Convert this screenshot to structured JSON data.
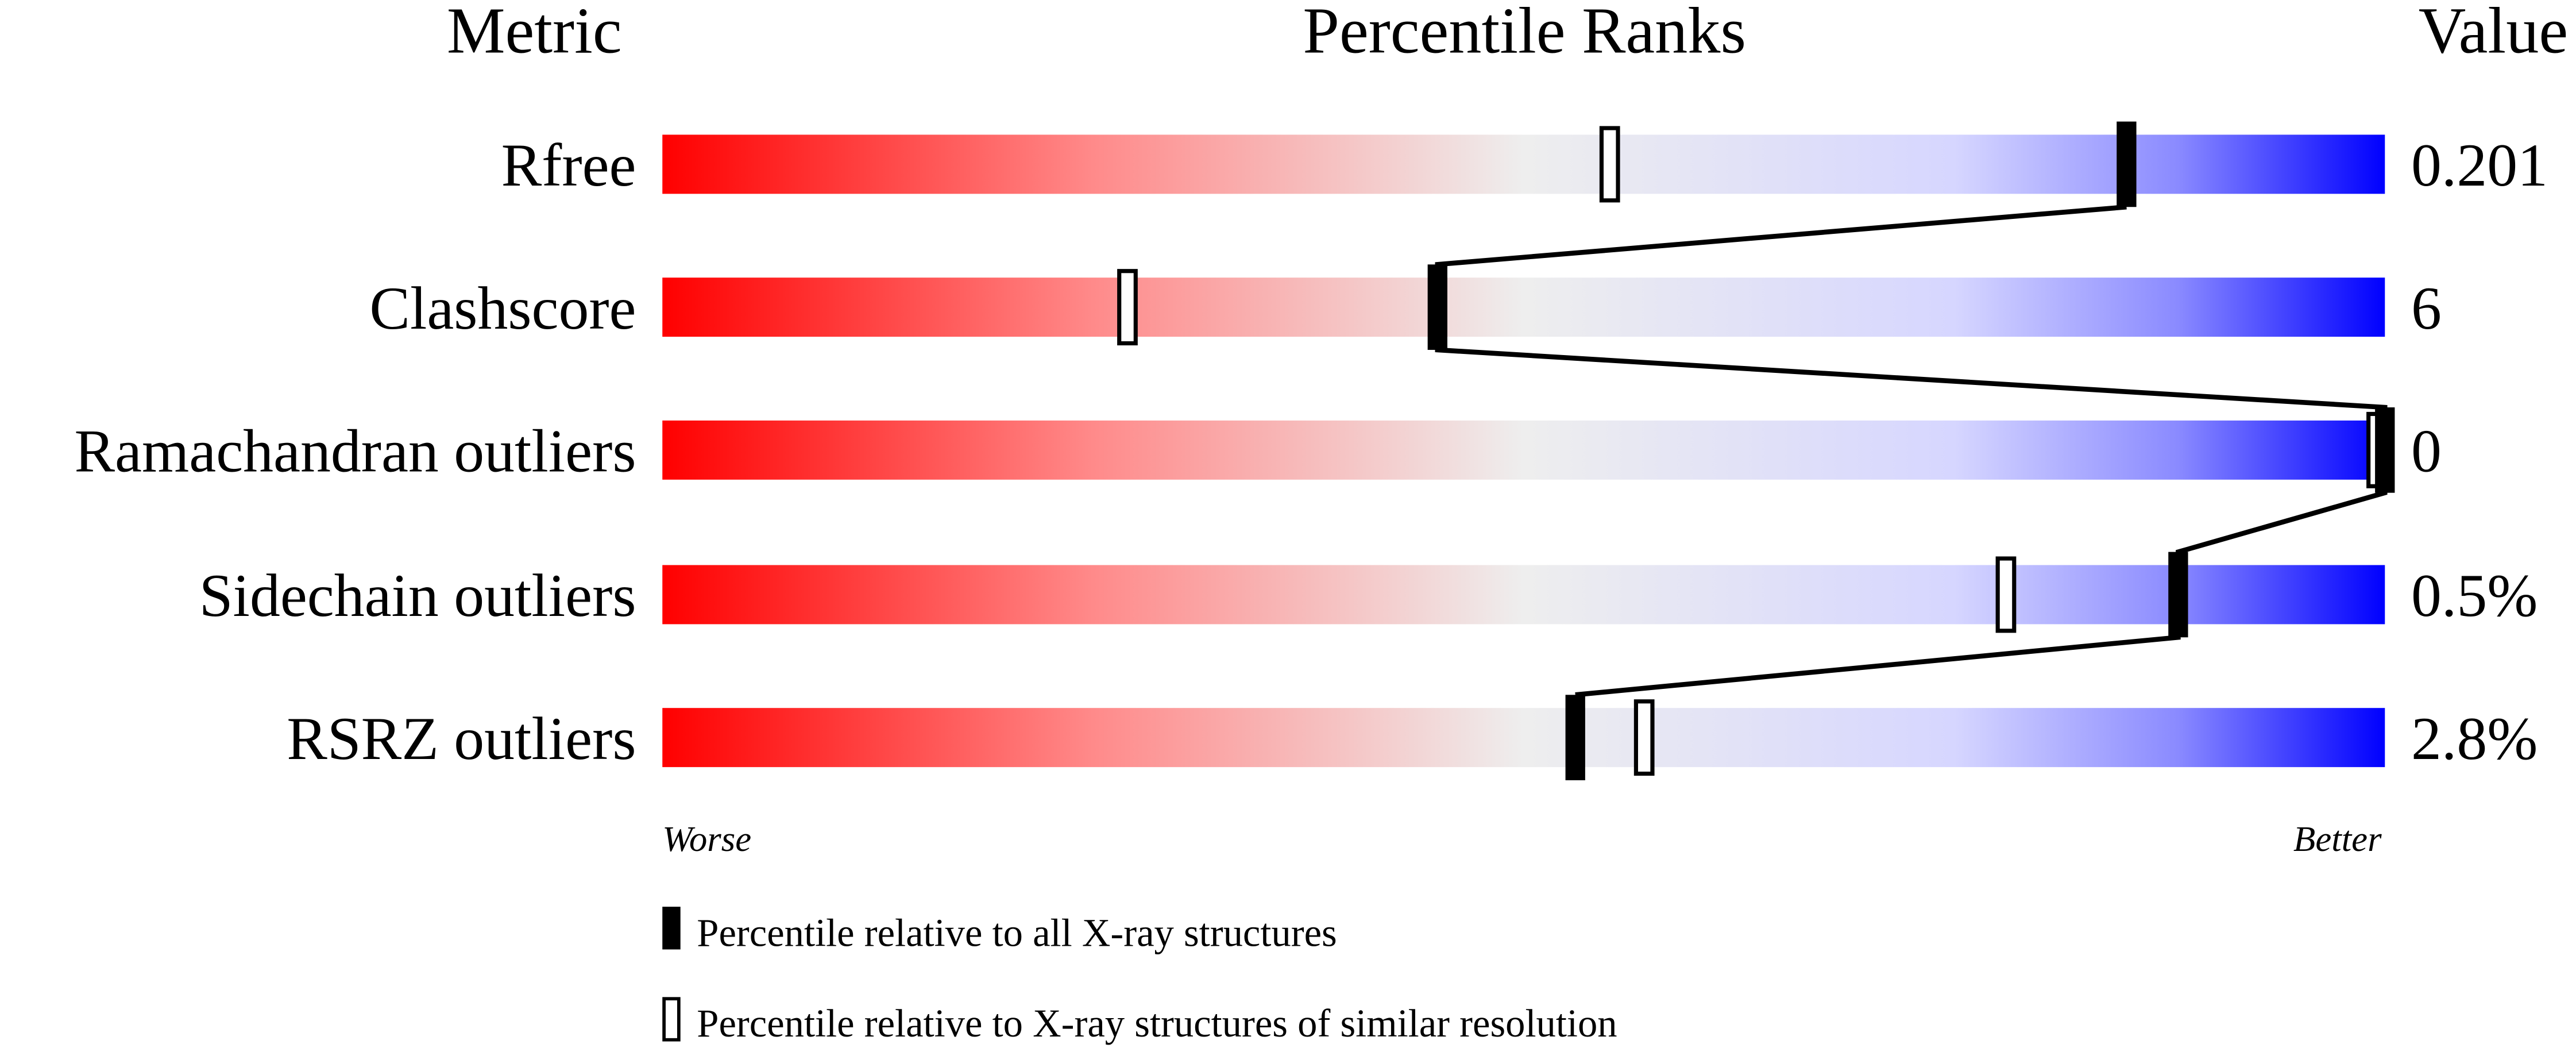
{
  "chart_data": {
    "type": "bar",
    "headers": {
      "metric": "Metric",
      "percentile": "Percentile Ranks",
      "value": "Value"
    },
    "xlim": [
      0,
      100
    ],
    "axis_labels": {
      "worse": "Worse",
      "better": "Better"
    },
    "colors": {
      "worse": "#ff0000",
      "middle": "#eeeeee",
      "better": "#0000ff"
    },
    "metrics": [
      {
        "name": "Rfree",
        "value": "0.201",
        "percentile_all": 85,
        "percentile_similar": 55
      },
      {
        "name": "Clashscore",
        "value": "6",
        "percentile_all": 45,
        "percentile_similar": 27
      },
      {
        "name": "Ramachandran outliers",
        "value": "0",
        "percentile_all": 100,
        "percentile_similar": 100
      },
      {
        "name": "Sidechain outliers",
        "value": "0.5%",
        "percentile_all": 88,
        "percentile_similar": 78
      },
      {
        "name": "RSRZ outliers",
        "value": "2.8%",
        "percentile_all": 53,
        "percentile_similar": 57
      }
    ],
    "legend": [
      {
        "marker": "filled",
        "label": "Percentile relative to all X-ray structures"
      },
      {
        "marker": "open",
        "label": "Percentile relative to X-ray structures of similar resolution"
      }
    ]
  }
}
